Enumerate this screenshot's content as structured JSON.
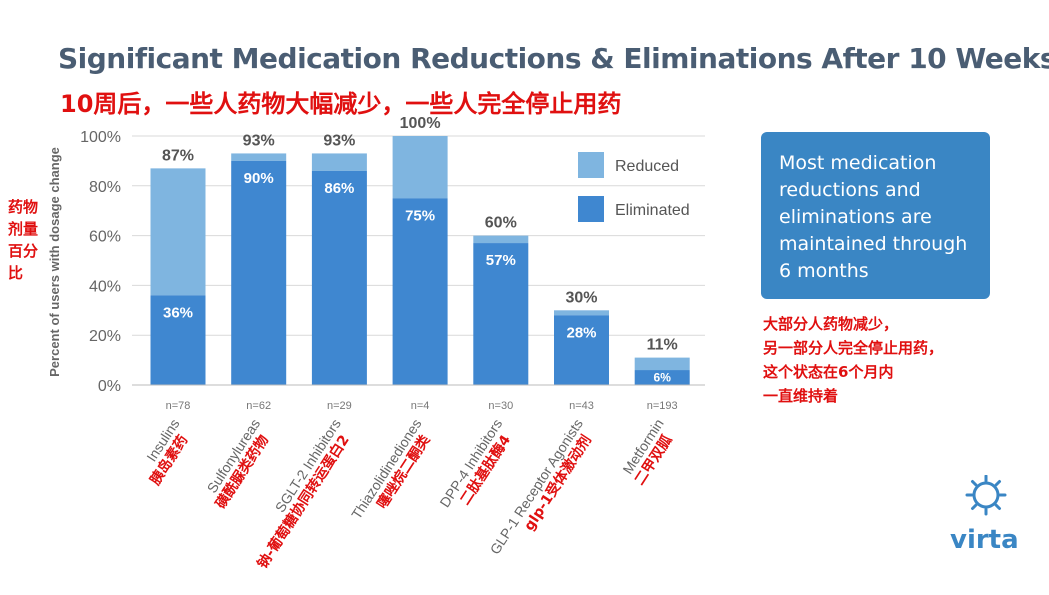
{
  "title": "Significant Medication Reductions & Eliminations After 10 Weeks",
  "subtitle": "10周后，一些人药物大幅减少，一些人完全停止用药",
  "yaxis_note": "药物剂量百分比",
  "callout": "Most medication reductions and eliminations are maintained through 6 months",
  "note": [
    "大部分人药物减少，",
    "另一部分人完全停止用药，",
    "这个状态在6个月内",
    "一直维持着"
  ],
  "logo": {
    "text": "virta"
  },
  "colors": {
    "reduced": "#7fb5e0",
    "eliminated": "#3f87d0",
    "callout": "#3a86c4",
    "red_note": "#e01010"
  },
  "chart_data": {
    "type": "bar",
    "stacked": true,
    "ylabel": "Percent of users with dosage change",
    "ylim": [
      0,
      100
    ],
    "yticks": [
      "0%",
      "20%",
      "40%",
      "60%",
      "80%",
      "100%"
    ],
    "grid": true,
    "legend_placement": "top-right",
    "categories": [
      "Insulins",
      "Sulfonylureas",
      "SGLT-2 Inhibitors",
      "Thiazolidinediones",
      "DPP-4 Inhibitors",
      "GLP-1 Receptor Agonists",
      "Metformin"
    ],
    "categories_cn": [
      "胰岛素药",
      "磺酰脲类药物",
      "钠-葡萄糖协同转运蛋白2",
      "噻唑烷二酮类",
      "二肽基肽酶4",
      "glp-1受体激动剂",
      "二甲双胍"
    ],
    "n": [
      "n=78",
      "n=62",
      "n=29",
      "n=4",
      "n=30",
      "n=43",
      "n=193"
    ],
    "series": [
      {
        "name": "Eliminated",
        "values": [
          36,
          90,
          86,
          75,
          57,
          28,
          6
        ]
      },
      {
        "name": "Reduced",
        "values": [
          51,
          3,
          7,
          25,
          3,
          2,
          5
        ]
      }
    ],
    "totals": [
      87,
      93,
      93,
      100,
      60,
      30,
      11
    ],
    "total_labels": [
      "87%",
      "93%",
      "93%",
      "100%",
      "60%",
      "30%",
      "11%"
    ],
    "eliminated_labels": [
      "36%",
      "90%",
      "86%",
      "75%",
      "57%",
      "28%",
      "6%"
    ]
  }
}
